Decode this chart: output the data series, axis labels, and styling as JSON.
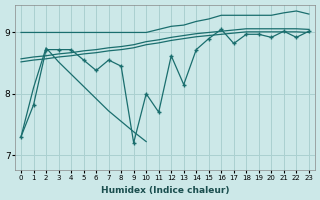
{
  "xlabel": "Humidex (Indice chaleur)",
  "xlim": [
    -0.5,
    23.5
  ],
  "ylim": [
    6.75,
    9.45
  ],
  "yticks": [
    7,
    8,
    9
  ],
  "xticks": [
    0,
    1,
    2,
    3,
    4,
    5,
    6,
    7,
    8,
    9,
    10,
    11,
    12,
    13,
    14,
    15,
    16,
    17,
    18,
    19,
    20,
    21,
    22,
    23
  ],
  "bg_color": "#cce8e8",
  "grid_color": "#aad0d0",
  "line_color": "#1a6e6e",
  "x": [
    0,
    1,
    2,
    3,
    4,
    5,
    6,
    7,
    8,
    9,
    10,
    11,
    12,
    13,
    14,
    15,
    16,
    17,
    18,
    19,
    20,
    21,
    22,
    23
  ],
  "y_main": [
    7.3,
    7.82,
    8.72,
    8.72,
    8.72,
    8.55,
    8.38,
    8.55,
    8.45,
    7.2,
    8.0,
    7.7,
    8.62,
    8.15,
    8.72,
    8.9,
    9.05,
    8.82,
    8.97,
    8.97,
    8.92,
    9.02,
    8.92,
    9.02
  ],
  "y_top": [
    9.0,
    9.0,
    9.0,
    9.0,
    9.0,
    9.0,
    9.0,
    9.0,
    9.0,
    9.0,
    9.0,
    9.05,
    9.1,
    9.12,
    9.18,
    9.22,
    9.28,
    9.28,
    9.28,
    9.28,
    9.28,
    9.32,
    9.35,
    9.3
  ],
  "y_mid": [
    8.57,
    8.6,
    8.62,
    8.65,
    8.67,
    8.7,
    8.72,
    8.75,
    8.77,
    8.8,
    8.85,
    8.88,
    8.92,
    8.95,
    8.98,
    9.0,
    9.02,
    9.04,
    9.06,
    9.06,
    9.06,
    9.06,
    9.06,
    9.05
  ],
  "y_low": [
    8.52,
    8.55,
    8.57,
    8.6,
    8.62,
    8.65,
    8.67,
    8.7,
    8.72,
    8.75,
    8.8,
    8.83,
    8.87,
    8.9,
    8.93,
    8.95,
    8.97,
    8.99,
    9.01,
    9.01,
    9.01,
    9.01,
    9.01,
    9.0
  ],
  "x_diag": [
    0,
    1,
    2,
    3,
    4,
    5,
    6,
    7,
    8,
    9,
    10
  ],
  "y_diag": [
    7.3,
    8.1,
    8.75,
    8.52,
    8.32,
    8.12,
    7.92,
    7.72,
    7.55,
    7.38,
    7.22
  ]
}
